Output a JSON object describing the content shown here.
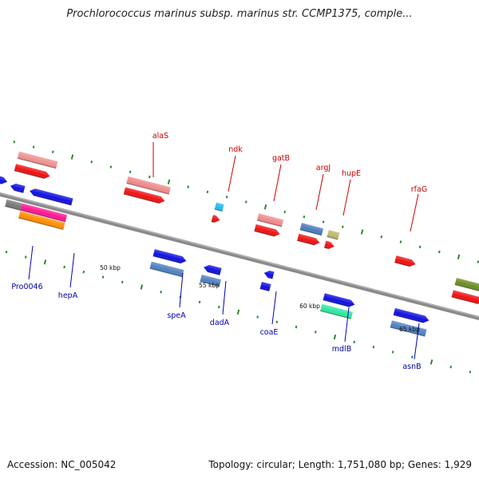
{
  "title": "Prochlorococcus marinus subsp. marinus str. CCMP1375, comple...",
  "footer": {
    "accession": "Accession: NC_005042",
    "topology": "Topology: circular; Length: 1,751,080 bp; Genes: 1,929"
  },
  "colors": {
    "backbone": "#8a8a8a",
    "label_top": "#cc0000",
    "label_bottom": "#0000aa",
    "dots": "#2a8a2a"
  },
  "ticks": [
    {
      "id": "50",
      "label": "50 kbp"
    },
    {
      "id": "55",
      "label": "55 kbp"
    },
    {
      "id": "60",
      "label": "60 kbp"
    },
    {
      "id": "65",
      "label": "65 kbp"
    }
  ],
  "genes_top": [
    {
      "id": "alaS",
      "label": "alaS"
    },
    {
      "id": "ndk",
      "label": "ndk"
    },
    {
      "id": "gatB",
      "label": "gatB"
    },
    {
      "id": "argJ",
      "label": "argJ"
    },
    {
      "id": "hupE",
      "label": "hupE"
    },
    {
      "id": "rfaG",
      "label": "rfaG"
    }
  ],
  "genes_bottom": [
    {
      "id": "Pro0046",
      "label": "Pro0046"
    },
    {
      "id": "hepA",
      "label": "hepA"
    },
    {
      "id": "speA",
      "label": "speA"
    },
    {
      "id": "dadA",
      "label": "dadA"
    },
    {
      "id": "coaE",
      "label": "coaE"
    },
    {
      "id": "mdlB",
      "label": "mdlB"
    },
    {
      "id": "asnB",
      "label": "asnB"
    }
  ]
}
